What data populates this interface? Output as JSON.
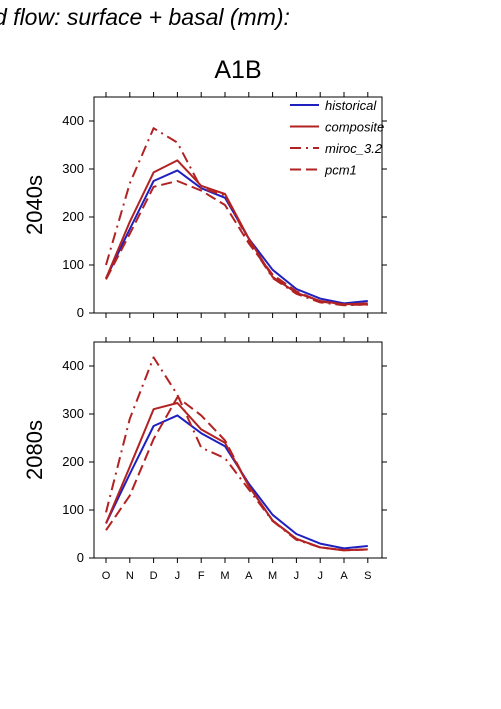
{
  "page": {
    "title": "d flow: surface + basal (mm):",
    "scenario": "A1B"
  },
  "chart_data": {
    "type": "line",
    "categories": [
      "O",
      "N",
      "D",
      "J",
      "F",
      "M",
      "A",
      "M",
      "J",
      "J",
      "A",
      "S"
    ],
    "ylim": [
      0,
      450
    ],
    "yticks": [
      0,
      100,
      200,
      300,
      400
    ],
    "grid": false,
    "legend_position": "top-right",
    "panels": [
      {
        "ylabel": "2040s",
        "series": [
          {
            "name": "historical",
            "color": "#2020c0",
            "dash": "solid",
            "values": [
              72,
              175,
              275,
              297,
              260,
              240,
              155,
              90,
              50,
              30,
              20,
              25
            ]
          },
          {
            "name": "composite",
            "color": "#b22222",
            "dash": "solid",
            "values": [
              72,
              190,
              293,
              318,
              265,
              248,
              155,
              75,
              42,
              25,
              18,
              20
            ]
          },
          {
            "name": "miroc_3.2",
            "color": "#b22222",
            "dash": "dashdot",
            "values": [
              100,
              270,
              385,
              355,
              260,
              245,
              150,
              73,
              40,
              22,
              16,
              18
            ]
          },
          {
            "name": "pcm1",
            "color": "#b22222",
            "dash": "dashed",
            "values": [
              70,
              165,
              263,
              275,
              255,
              225,
              145,
              80,
              45,
              24,
              17,
              17
            ]
          }
        ]
      },
      {
        "ylabel": "2080s",
        "series": [
          {
            "name": "historical",
            "color": "#2020c0",
            "dash": "solid",
            "values": [
              72,
              175,
              275,
              297,
              260,
              233,
              155,
              90,
              50,
              30,
              20,
              25
            ]
          },
          {
            "name": "composite",
            "color": "#b22222",
            "dash": "solid",
            "values": [
              72,
              190,
              310,
              323,
              268,
              240,
              150,
              78,
              40,
              22,
              16,
              18
            ]
          },
          {
            "name": "miroc_3.2",
            "color": "#b22222",
            "dash": "dashdot",
            "values": [
              95,
              290,
              418,
              340,
              230,
              208,
              143,
              77,
              38,
              22,
              16,
              18
            ]
          },
          {
            "name": "pcm1",
            "color": "#b22222",
            "dash": "dashed",
            "values": [
              58,
              130,
              248,
              335,
              297,
              245,
              150,
              78,
              40,
              22,
              16,
              18
            ]
          }
        ]
      }
    ]
  }
}
